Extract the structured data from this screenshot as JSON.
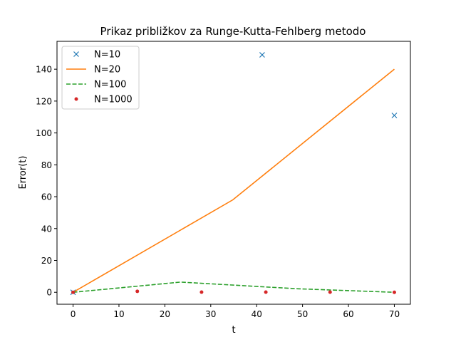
{
  "chart_data": {
    "type": "line",
    "title": "Prikaz približkov za Runge-Kutta-Fehlberg metodo",
    "xlabel": "t",
    "ylabel": "Error(t)",
    "xlim": [
      -3.5,
      73.5
    ],
    "ylim": [
      -7.5,
      157.5
    ],
    "xticks": [
      0,
      10,
      20,
      30,
      40,
      50,
      60,
      70
    ],
    "yticks": [
      0,
      20,
      40,
      60,
      80,
      100,
      120,
      140
    ],
    "legend_position": "top-left",
    "grid": false,
    "series": [
      {
        "name": "N=10",
        "style": "marker-x",
        "color": "#1f77b4",
        "points": [
          [
            0,
            0
          ],
          [
            41.2,
            149
          ],
          [
            70,
            111
          ]
        ]
      },
      {
        "name": "N=20",
        "style": "line-solid",
        "color": "#ff7f0e",
        "points": [
          [
            0,
            0
          ],
          [
            34.8,
            58
          ],
          [
            70,
            140
          ]
        ]
      },
      {
        "name": "N=100",
        "style": "line-dashed",
        "color": "#2ca02c",
        "points": [
          [
            0,
            0
          ],
          [
            23.4,
            6.4
          ],
          [
            49,
            2.2
          ],
          [
            70,
            0
          ]
        ]
      },
      {
        "name": "N=1000",
        "style": "marker-dot",
        "color": "#d62728",
        "points": [
          [
            0,
            0
          ],
          [
            14,
            0.6
          ],
          [
            28,
            0.1
          ],
          [
            42,
            0.1
          ],
          [
            56,
            0.1
          ],
          [
            70,
            0
          ]
        ]
      }
    ]
  }
}
